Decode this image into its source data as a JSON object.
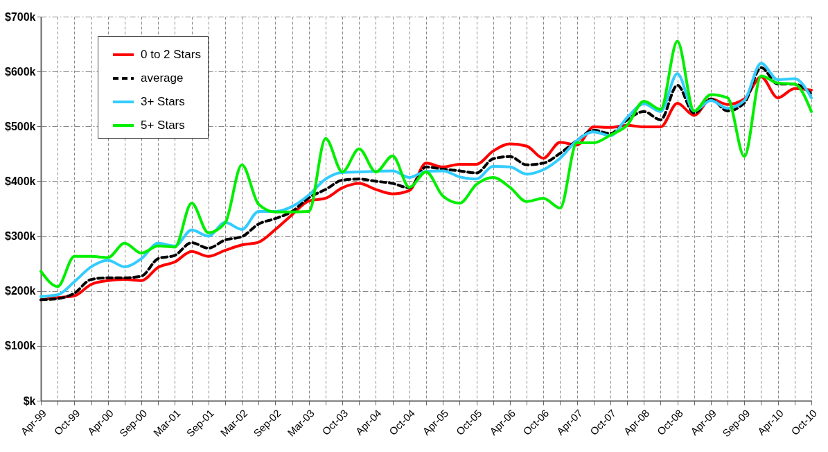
{
  "chart_data": {
    "type": "line",
    "categories": [
      "Apr-99",
      null,
      "Oct-99",
      null,
      "Apr-00",
      null,
      "Sep-00",
      null,
      "Mar-01",
      null,
      "Sep-01",
      null,
      "Mar-02",
      null,
      "Sep-02",
      null,
      "Mar-03",
      null,
      "Oct-03",
      null,
      "Apr-04",
      null,
      "Oct-04",
      null,
      "Apr-05",
      null,
      "Oct-05",
      null,
      "Apr-06",
      null,
      "Oct-06",
      null,
      "Apr-07",
      null,
      "Oct-07",
      null,
      "Apr-08",
      null,
      "Oct-08",
      null,
      "Apr-09",
      null,
      "Sep-09",
      null,
      "Apr-10",
      null,
      "Oct-10"
    ],
    "series": [
      {
        "name": "0 to 2 Stars",
        "color": "#ff0000",
        "values": [
          184,
          188,
          191,
          212,
          219,
          221,
          219,
          243,
          253,
          272,
          263,
          274,
          284,
          289,
          312,
          339,
          364,
          369,
          388,
          396,
          385,
          377,
          383,
          433,
          426,
          431,
          431,
          455,
          468,
          464,
          442,
          471,
          466,
          499,
          498,
          502,
          499,
          499,
          542,
          520,
          550,
          540,
          550,
          590,
          552,
          569,
          566
        ]
      },
      {
        "name": "average",
        "color": "#000000",
        "line_style": "dashed",
        "values": [
          184,
          186,
          196,
          221,
          224,
          224,
          227,
          259,
          265,
          288,
          278,
          293,
          299,
          322,
          332,
          345,
          370,
          385,
          402,
          404,
          400,
          396,
          388,
          426,
          422,
          419,
          415,
          441,
          445,
          430,
          433,
          451,
          474,
          493,
          487,
          512,
          527,
          512,
          575,
          524,
          550,
          528,
          543,
          607,
          577,
          577,
          559
        ]
      },
      {
        "name": "3+ Stars",
        "color": "#33ccff",
        "values": [
          190,
          193,
          217,
          244,
          256,
          244,
          259,
          287,
          282,
          311,
          300,
          325,
          312,
          345,
          345,
          354,
          375,
          404,
          416,
          417,
          418,
          419,
          407,
          418,
          419,
          408,
          404,
          427,
          426,
          413,
          421,
          442,
          474,
          490,
          483,
          516,
          541,
          527,
          596,
          528,
          547,
          533,
          547,
          615,
          585,
          587,
          552
        ]
      },
      {
        "name": "5+ Stars",
        "color": "#00ee00",
        "values": [
          236,
          208,
          263,
          263,
          261,
          287,
          269,
          282,
          280,
          360,
          306,
          324,
          430,
          358,
          344,
          344,
          345,
          478,
          417,
          459,
          417,
          446,
          389,
          417,
          373,
          360,
          394,
          407,
          389,
          363,
          369,
          351,
          470,
          470,
          484,
          502,
          546,
          531,
          655,
          528,
          558,
          552,
          445,
          592,
          579,
          577,
          527
        ]
      }
    ],
    "ylim": [
      0,
      700
    ],
    "yticks": [
      {
        "value": 0,
        "label": "$k"
      },
      {
        "value": 100,
        "label": "$100k"
      },
      {
        "value": 200,
        "label": "$200k"
      },
      {
        "value": 300,
        "label": "$300k"
      },
      {
        "value": 400,
        "label": "$400k"
      },
      {
        "value": 500,
        "label": "$500k"
      },
      {
        "value": 600,
        "label": "$600k"
      },
      {
        "value": 700,
        "label": "$700k"
      }
    ],
    "grid": true,
    "legend": "top left",
    "line_style": "solid"
  }
}
